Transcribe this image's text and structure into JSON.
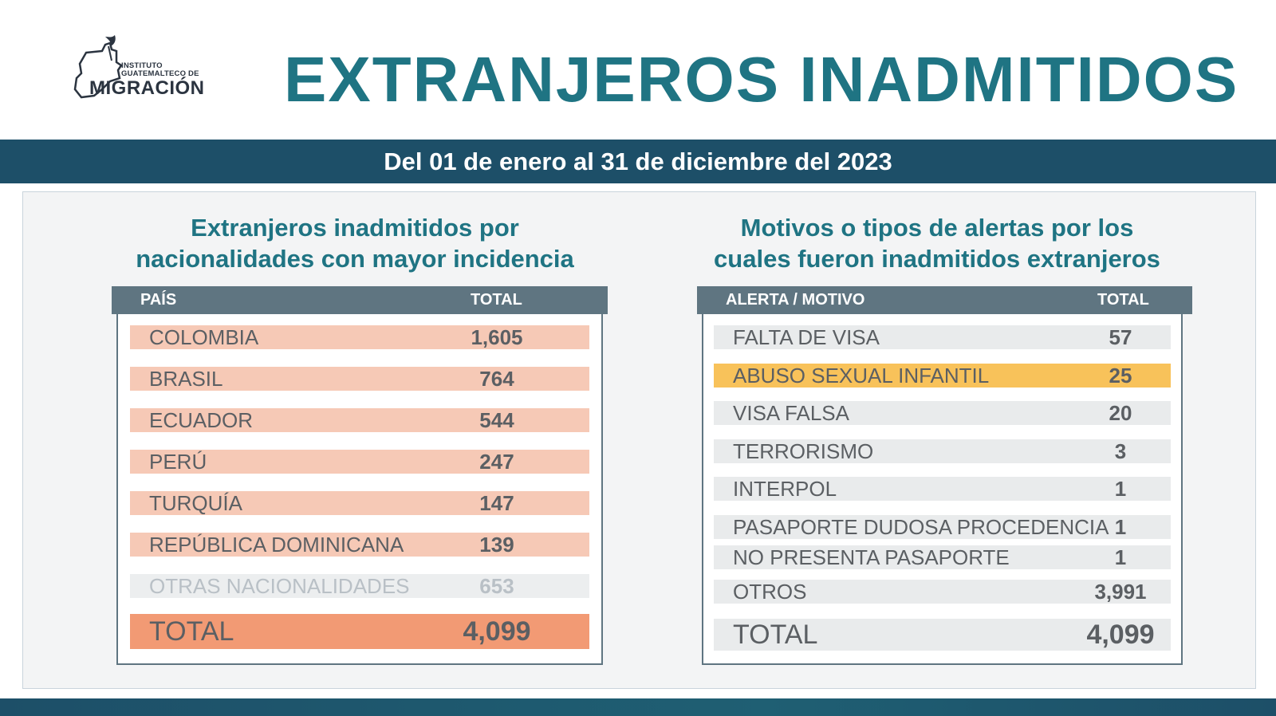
{
  "header": {
    "logo_small_line1": "INSTITUTO",
    "logo_small_line2": "GUATEMALTECO DE",
    "logo_big": "MIGRACIÓN",
    "title": "EXTRANJEROS INADMITIDOS"
  },
  "date_range": "Del 01 de enero al 31 de diciembre del 2023",
  "left": {
    "title_line1": "Extranjeros inadmitidos por",
    "title_line2": "nacionalidades con mayor incidencia",
    "col_country": "PAÍS",
    "col_total": "TOTAL",
    "rows": [
      {
        "label": "COLOMBIA",
        "value": "1,605"
      },
      {
        "label": "BRASIL",
        "value": "764"
      },
      {
        "label": "ECUADOR",
        "value": "544"
      },
      {
        "label": "PERÚ",
        "value": "247"
      },
      {
        "label": "TURQUÍA",
        "value": "147"
      },
      {
        "label": "REPÚBLICA DOMINICANA",
        "value": "139"
      },
      {
        "label": "OTRAS NACIONALIDADES",
        "value": "653"
      }
    ],
    "total_label": "TOTAL",
    "total_value": "4,099"
  },
  "right": {
    "title_line1": "Motivos o tipos de alertas por los",
    "title_line2": "cuales fueron inadmitidos extranjeros",
    "col_reason": "ALERTA / MOTIVO",
    "col_total": "TOTAL",
    "rows": [
      {
        "label": "FALTA DE VISA",
        "value": "57"
      },
      {
        "label": "ABUSO SEXUAL INFANTIL",
        "value": "25"
      },
      {
        "label": "VISA FALSA",
        "value": "20"
      },
      {
        "label": "TERRORISMO",
        "value": "3"
      },
      {
        "label": "INTERPOL",
        "value": "1"
      },
      {
        "label": "PASAPORTE DUDOSA PROCEDENCIA",
        "value": "1"
      },
      {
        "label": "NO PRESENTA PASAPORTE",
        "value": "1"
      },
      {
        "label": "OTROS",
        "value": "3,991"
      }
    ],
    "total_label": "TOTAL",
    "total_value": "4,099"
  },
  "colors": {
    "title_teal": "#1f7483",
    "band_navy": "#1d4f68",
    "header_slate": "#5f7581",
    "row_salmon": "#f6c9b6",
    "total_orange": "#f29a74",
    "highlight_yellow": "#f8c25a"
  }
}
